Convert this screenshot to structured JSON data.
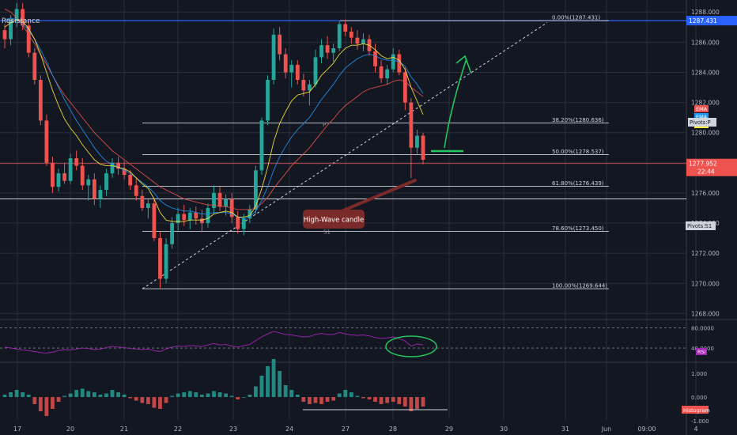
{
  "title": "Resistance",
  "colors": {
    "bg": "#131722",
    "up": "#26a69a",
    "down": "#ef5350",
    "grid": "#2a2e39",
    "axis_text": "#b2b5be"
  },
  "chart_data": [
    {
      "type": "candlestick",
      "x_ticks": [
        "17",
        "20",
        "21",
        "22",
        "23",
        "24",
        "27",
        "28",
        "29",
        "30",
        "31",
        "Jun",
        "09:00",
        "4"
      ],
      "y_ticks": [
        1288.0,
        1286.0,
        1284.0,
        1282.0,
        1280.0,
        1278.0,
        1276.0,
        1274.0,
        1272.0,
        1270.0,
        1268.0
      ],
      "ylim": [
        1267.6,
        1288.8
      ],
      "ohlc": [
        [
          1286.8,
          1287.2,
          1285.6,
          1286.2
        ],
        [
          1286.2,
          1287.8,
          1285.8,
          1287.5
        ],
        [
          1287.5,
          1288.6,
          1287.0,
          1288.2
        ],
        [
          1288.2,
          1288.6,
          1286.8,
          1287.1
        ],
        [
          1287.1,
          1287.4,
          1285.0,
          1285.3
        ],
        [
          1285.3,
          1285.6,
          1283.2,
          1283.5
        ],
        [
          1283.5,
          1283.8,
          1280.5,
          1280.8
        ],
        [
          1280.8,
          1281.2,
          1277.8,
          1278.0
        ],
        [
          1278.0,
          1278.4,
          1276.0,
          1276.4
        ],
        [
          1276.4,
          1277.6,
          1276.1,
          1277.3
        ],
        [
          1277.3,
          1278.0,
          1276.6,
          1276.8
        ],
        [
          1276.8,
          1278.6,
          1276.6,
          1278.3
        ],
        [
          1278.3,
          1278.8,
          1277.5,
          1277.8
        ],
        [
          1277.8,
          1278.3,
          1276.2,
          1276.5
        ],
        [
          1276.5,
          1277.2,
          1275.5,
          1276.9
        ],
        [
          1276.9,
          1277.3,
          1275.2,
          1275.6
        ],
        [
          1275.6,
          1276.5,
          1275.0,
          1276.2
        ],
        [
          1276.2,
          1277.6,
          1275.8,
          1277.3
        ],
        [
          1277.3,
          1278.3,
          1277.0,
          1278.0
        ],
        [
          1278.0,
          1278.4,
          1277.2,
          1277.6
        ],
        [
          1277.6,
          1278.1,
          1276.9,
          1277.2
        ],
        [
          1277.2,
          1277.5,
          1276.2,
          1276.5
        ],
        [
          1276.5,
          1277.0,
          1275.5,
          1275.8
        ],
        [
          1275.8,
          1276.2,
          1274.8,
          1275.0
        ],
        [
          1275.0,
          1275.6,
          1274.3,
          1275.3
        ],
        [
          1275.3,
          1275.6,
          1272.8,
          1273.0
        ],
        [
          1273.0,
          1273.4,
          1269.7,
          1270.3
        ],
        [
          1270.3,
          1273.0,
          1270.0,
          1272.6
        ],
        [
          1272.6,
          1274.4,
          1272.3,
          1274.0
        ],
        [
          1274.0,
          1275.0,
          1273.5,
          1274.6
        ],
        [
          1274.6,
          1275.2,
          1273.8,
          1274.2
        ],
        [
          1274.2,
          1275.0,
          1273.6,
          1274.7
        ],
        [
          1274.7,
          1275.1,
          1273.9,
          1274.3
        ],
        [
          1274.3,
          1274.9,
          1273.4,
          1274.0
        ],
        [
          1274.0,
          1275.3,
          1273.7,
          1275.0
        ],
        [
          1275.0,
          1276.5,
          1274.6,
          1276.0
        ],
        [
          1276.0,
          1276.4,
          1274.8,
          1275.1
        ],
        [
          1275.1,
          1275.9,
          1274.5,
          1275.6
        ],
        [
          1275.6,
          1276.0,
          1274.0,
          1274.4
        ],
        [
          1274.4,
          1274.8,
          1273.3,
          1273.6
        ],
        [
          1273.6,
          1274.6,
          1273.2,
          1274.3
        ],
        [
          1274.3,
          1275.2,
          1274.0,
          1274.9
        ],
        [
          1274.9,
          1277.8,
          1274.6,
          1277.5
        ],
        [
          1277.5,
          1281.0,
          1277.2,
          1280.8
        ],
        [
          1280.8,
          1283.8,
          1280.5,
          1283.5
        ],
        [
          1283.5,
          1286.9,
          1283.2,
          1286.5
        ],
        [
          1286.5,
          1287.0,
          1284.8,
          1285.2
        ],
        [
          1285.2,
          1285.6,
          1283.6,
          1284.0
        ],
        [
          1284.0,
          1284.8,
          1283.0,
          1284.5
        ],
        [
          1284.5,
          1284.8,
          1283.2,
          1283.5
        ],
        [
          1283.5,
          1283.9,
          1282.4,
          1282.8
        ],
        [
          1282.8,
          1283.5,
          1281.8,
          1283.2
        ],
        [
          1283.2,
          1285.5,
          1283.0,
          1285.0
        ],
        [
          1285.0,
          1286.2,
          1284.6,
          1285.8
        ],
        [
          1285.8,
          1286.4,
          1284.9,
          1285.3
        ],
        [
          1285.3,
          1285.9,
          1284.7,
          1285.6
        ],
        [
          1285.6,
          1287.4,
          1285.4,
          1287.2
        ],
        [
          1287.2,
          1287.5,
          1286.4,
          1286.7
        ],
        [
          1286.7,
          1287.0,
          1285.9,
          1286.3
        ],
        [
          1286.3,
          1286.8,
          1285.5,
          1285.9
        ],
        [
          1285.9,
          1286.6,
          1285.4,
          1286.2
        ],
        [
          1286.2,
          1286.5,
          1285.1,
          1285.4
        ],
        [
          1285.4,
          1285.9,
          1284.0,
          1284.4
        ],
        [
          1284.4,
          1284.8,
          1283.3,
          1283.6
        ],
        [
          1283.6,
          1284.5,
          1283.2,
          1284.2
        ],
        [
          1284.2,
          1285.6,
          1284.0,
          1285.2
        ],
        [
          1285.2,
          1285.5,
          1283.8,
          1284.0
        ],
        [
          1284.0,
          1284.3,
          1281.5,
          1282.0
        ],
        [
          1282.0,
          1282.3,
          1277.0,
          1279.0
        ],
        [
          1279.0,
          1280.2,
          1278.6,
          1279.8
        ],
        [
          1279.8,
          1280.0,
          1277.9,
          1278.2
        ]
      ],
      "ema_lines": [
        {
          "name": "EMA",
          "color": "#ef5350",
          "values": [
            1288.2,
            1288.0,
            1287.6,
            1287.1,
            1286.5,
            1285.9,
            1285.2,
            1284.5,
            1283.8,
            1283.1,
            1282.5,
            1282.0,
            1281.5,
            1281.0,
            1280.5,
            1280.0,
            1279.6,
            1279.2,
            1278.8,
            1278.5,
            1278.2,
            1277.9,
            1277.6,
            1277.3,
            1277.0,
            1276.7,
            1276.4,
            1276.2,
            1276.0,
            1275.8,
            1275.6,
            1275.5,
            1275.4,
            1275.3,
            1275.2,
            1275.2,
            1275.1,
            1275.1,
            1275.0,
            1274.9,
            1274.9,
            1274.9,
            1275.0,
            1275.3,
            1275.7,
            1276.3,
            1276.8,
            1277.3,
            1277.8,
            1278.2,
            1278.6,
            1279.0,
            1279.5,
            1280.0,
            1280.5,
            1280.9,
            1281.4,
            1281.8,
            1282.1,
            1282.4,
            1282.7,
            1282.9,
            1283.0,
            1283.1,
            1283.2,
            1283.4,
            1283.5,
            1283.4,
            1283.0,
            1282.7,
            1282.4
          ]
        },
        {
          "name": "EMA",
          "color": "#2196f3",
          "values": [
            1287.5,
            1287.6,
            1287.5,
            1287.2,
            1286.8,
            1286.2,
            1285.5,
            1284.7,
            1283.8,
            1283.0,
            1282.2,
            1281.5,
            1280.8,
            1280.2,
            1279.6,
            1279.0,
            1278.5,
            1278.1,
            1277.9,
            1277.7,
            1277.5,
            1277.3,
            1277.0,
            1276.7,
            1276.4,
            1276.0,
            1275.5,
            1275.2,
            1275.0,
            1274.9,
            1274.8,
            1274.8,
            1274.7,
            1274.6,
            1274.6,
            1274.7,
            1274.7,
            1274.7,
            1274.6,
            1274.4,
            1274.3,
            1274.4,
            1274.8,
            1275.5,
            1276.4,
            1277.5,
            1278.4,
            1279.1,
            1279.7,
            1280.2,
            1280.6,
            1281.0,
            1281.6,
            1282.2,
            1282.7,
            1283.2,
            1283.8,
            1284.3,
            1284.6,
            1284.9,
            1285.1,
            1285.2,
            1285.1,
            1284.9,
            1284.8,
            1284.8,
            1284.7,
            1284.4,
            1283.7,
            1283.2,
            1282.6
          ]
        },
        {
          "name": "EMA",
          "color": "#ffeb3b",
          "values": [
            1287.0,
            1287.3,
            1287.5,
            1287.4,
            1286.9,
            1286.2,
            1285.2,
            1284.0,
            1282.8,
            1281.8,
            1280.9,
            1280.3,
            1279.8,
            1279.2,
            1278.7,
            1278.2,
            1277.9,
            1277.8,
            1277.8,
            1277.7,
            1277.6,
            1277.4,
            1277.0,
            1276.6,
            1276.3,
            1275.6,
            1274.7,
            1274.2,
            1274.1,
            1274.1,
            1274.1,
            1274.2,
            1274.2,
            1274.2,
            1274.3,
            1274.6,
            1274.7,
            1274.8,
            1274.7,
            1274.4,
            1274.4,
            1274.5,
            1275.1,
            1276.3,
            1277.7,
            1279.4,
            1280.6,
            1281.4,
            1282.1,
            1282.5,
            1282.6,
            1282.7,
            1283.2,
            1283.8,
            1284.2,
            1284.6,
            1285.2,
            1285.6,
            1285.8,
            1285.8,
            1285.9,
            1285.8,
            1285.5,
            1285.1,
            1284.9,
            1285.0,
            1284.8,
            1284.2,
            1283.0,
            1282.1,
            1281.2
          ]
        }
      ],
      "ema_labels": [
        "EMA",
        "EMA",
        "EMA"
      ],
      "fib_levels": [
        {
          "label": "0.00%(1287.431)",
          "value": 1287.431
        },
        {
          "label": "38.20%(1280.636)",
          "value": 1280.636
        },
        {
          "label": "50.00%(1278.537)",
          "value": 1278.537
        },
        {
          "label": "61.80%(1276.439)",
          "value": 1276.439
        },
        {
          "label": "78.60%(1273.450)",
          "value": 1273.45
        },
        {
          "label": "100.00%(1269.644)",
          "value": 1269.644
        }
      ],
      "resistance_price": "1287.431",
      "last_price": "1277.952",
      "countdown": "22:44",
      "pivot_labels": {
        "p": "P",
        "s1": "S1",
        "p_tag": "Pivots:P",
        "s1_tag": "Pivots:S1"
      },
      "annotation": "High-Wave candle"
    },
    {
      "type": "line",
      "name": "RSI",
      "y_ticks": [
        "80.0000",
        "40.0000"
      ],
      "tag": "RSI",
      "values": [
        42,
        40,
        38,
        36,
        35,
        33,
        31,
        30,
        32,
        35,
        37,
        36,
        38,
        40,
        39,
        37,
        38,
        41,
        43,
        42,
        41,
        39,
        38,
        37,
        38,
        35,
        33,
        38,
        42,
        44,
        43,
        45,
        44,
        43,
        46,
        49,
        46,
        47,
        44,
        42,
        45,
        47,
        55,
        62,
        68,
        73,
        70,
        67,
        66,
        64,
        62,
        63,
        67,
        69,
        67,
        67,
        71,
        68,
        66,
        65,
        66,
        64,
        61,
        59,
        60,
        62,
        59,
        54,
        44,
        48,
        46
      ]
    },
    {
      "type": "bar",
      "name": "Histogram",
      "y_ticks": [
        "1.000",
        "0.000",
        "-1.000"
      ],
      "tag": "Histogram",
      "values": [
        0.1,
        0.2,
        0.3,
        0.2,
        0.1,
        -0.3,
        -0.6,
        -0.8,
        -0.5,
        -0.2,
        0.05,
        0.15,
        0.3,
        0.35,
        0.25,
        0.2,
        0.1,
        0.15,
        0.3,
        0.2,
        0.1,
        -0.05,
        -0.15,
        -0.25,
        -0.3,
        -0.45,
        -0.5,
        -0.25,
        0.05,
        0.15,
        0.2,
        0.25,
        0.2,
        0.1,
        0.15,
        0.25,
        0.2,
        0.15,
        0.05,
        -0.1,
        0.0,
        0.1,
        0.45,
        0.9,
        1.3,
        1.6,
        1.1,
        0.5,
        0.3,
        0.1,
        -0.2,
        -0.3,
        -0.25,
        -0.3,
        -0.2,
        -0.15,
        0.15,
        0.3,
        0.2,
        0.05,
        -0.05,
        -0.1,
        -0.2,
        -0.3,
        -0.25,
        -0.2,
        -0.3,
        -0.4,
        -0.6,
        -0.5,
        -0.4
      ]
    }
  ]
}
